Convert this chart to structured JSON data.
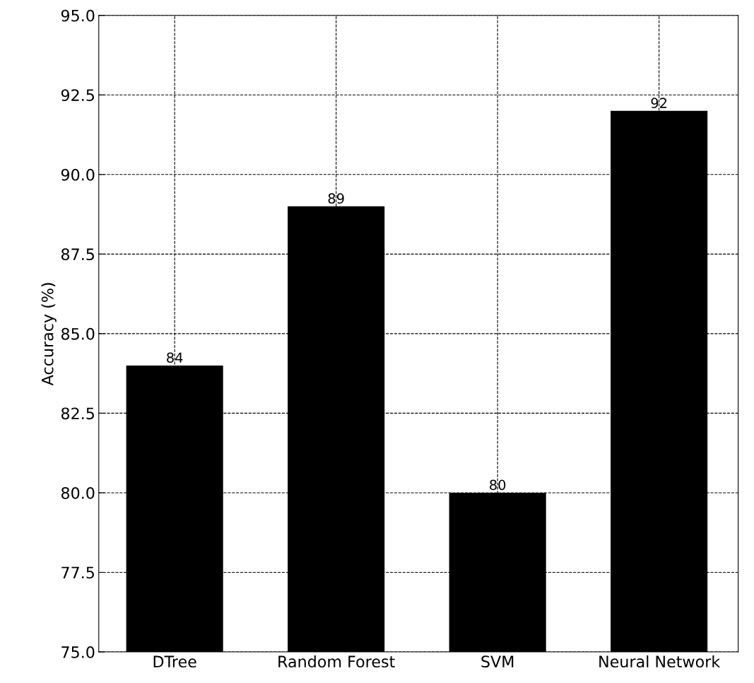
{
  "chart_data": {
    "type": "bar",
    "ylabel": "Accuracy (%)",
    "categories": [
      "DTree",
      "Random Forest",
      "SVM",
      "Neural Network"
    ],
    "values": [
      84,
      89,
      80,
      92
    ],
    "color": "#000000",
    "data_labels": true,
    "ylim": [
      75,
      95
    ],
    "yticks": [
      {
        "value": 75,
        "label": "75.0"
      },
      {
        "value": 77.5,
        "label": "77.5"
      },
      {
        "value": 80,
        "label": "80.0"
      },
      {
        "value": 82.5,
        "label": "82.5"
      },
      {
        "value": 85,
        "label": "85.0"
      },
      {
        "value": 87.5,
        "label": "87.5"
      },
      {
        "value": 90,
        "label": "90.0"
      },
      {
        "value": 92.5,
        "label": "92.5"
      },
      {
        "value": 95,
        "label": "95.0"
      }
    ],
    "grid": true,
    "line_style": "dashed"
  }
}
